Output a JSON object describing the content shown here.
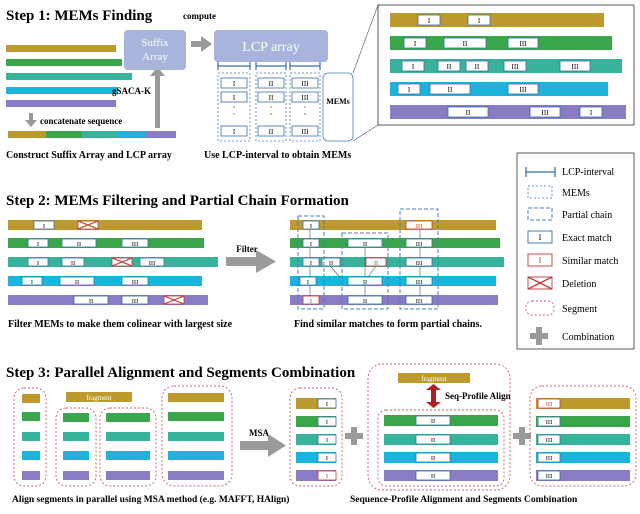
{
  "colors": {
    "gold": "#bd9a2e",
    "green": "#3aa64b",
    "teal": "#37b39c",
    "cyan": "#1eb3dc",
    "purple": "#8a7cc4",
    "exact_border": "#3b6ea8",
    "similar_border": "#c03a3a",
    "segment_border": "#c06060",
    "chain_border": "#4a7fb5",
    "box_fill": "#a8b4dc",
    "arrow_gray": "#9a9a9a"
  },
  "labels": {
    "I": "I",
    "II": "II",
    "III": "III",
    "dot": "·"
  },
  "step1": {
    "title": "Step 1: MEMs Finding",
    "suffix_array_line1": "Suffix",
    "suffix_array_line2": "Array",
    "compute": "compute",
    "lcp_array": "LCP array",
    "gsaca": "gSACA-K",
    "concatenate": "concatenate sequence",
    "mems": "MEMs",
    "caption_left": "Construct Suffix Array and LCP array",
    "caption_right": "Use LCP-interval to obtain MEMs"
  },
  "legend": {
    "items": [
      {
        "key": "lcp",
        "label": "LCP-interval"
      },
      {
        "key": "mems",
        "label": "MEMs"
      },
      {
        "key": "chain",
        "label": "Partial chain"
      },
      {
        "key": "exact",
        "label": "Exact match"
      },
      {
        "key": "similar",
        "label": "Similar match"
      },
      {
        "key": "deletion",
        "label": "Deletion"
      },
      {
        "key": "segment",
        "label": "Segment"
      },
      {
        "key": "combination",
        "label": "Combination"
      }
    ]
  },
  "step2": {
    "title": "Step 2: MEMs Filtering and Partial Chain Formation",
    "filter": "Filter",
    "caption_left": "Filter MEMs to make them colinear with largest size",
    "caption_right": "Find similar matches to form partial chains."
  },
  "step3": {
    "title": "Step 3: Parallel Alignment and Segments Combination",
    "fragment": "fragment",
    "msa": "MSA",
    "seq_profile": "Seq-Profile Align",
    "caption_left": "Align segments in parallel using MSA method (e.g. MAFFT, HAlign)",
    "caption_right": "Sequence-Profile Alignment and Segments Combination"
  }
}
